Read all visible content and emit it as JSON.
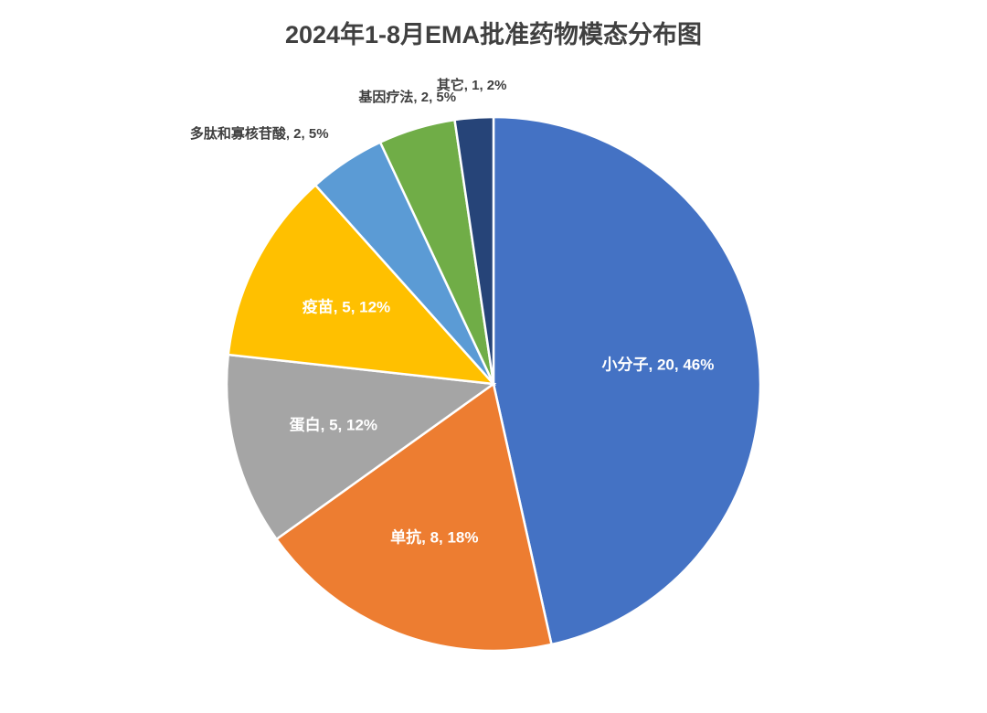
{
  "chart_data": {
    "type": "pie",
    "title": "2024年1-8月EMA批准药物模态分布图",
    "categories": [
      "小分子",
      "单抗",
      "蛋白",
      "疫苗",
      "多肽和寡核苷酸",
      "基因疗法",
      "其它"
    ],
    "values": [
      20,
      8,
      5,
      5,
      2,
      2,
      1
    ],
    "value_labels": [
      "小分子, 20, 46%",
      "单抗, 8, 18%",
      "蛋白, 5, 12%",
      "疫苗, 5, 12%",
      "多肽和寡核苷酸, 2, 5%",
      "基因疗法, 2, 5%",
      "其它, 1, 2%"
    ],
    "colors": [
      "#4472c4",
      "#ed7d31",
      "#a5a5a5",
      "#ffc000",
      "#5b9bd5",
      "#70ad47",
      "#264478"
    ]
  }
}
